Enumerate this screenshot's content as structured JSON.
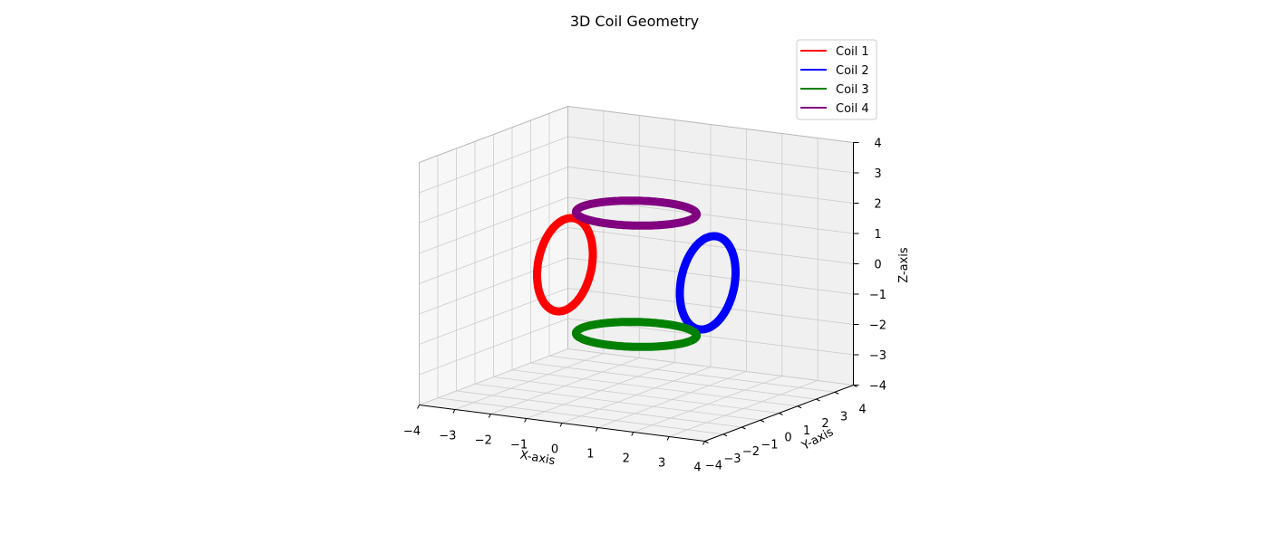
{
  "chart_data": {
    "type": "line3d",
    "title": "3D Coil Geometry",
    "xlabel": "X-axis",
    "ylabel": "Y-axis",
    "zlabel": "Z-axis",
    "xlim": [
      -4,
      4
    ],
    "ylim": [
      -4,
      4
    ],
    "zlim": [
      -4,
      4
    ],
    "xticks": [
      -4,
      -3,
      -2,
      -1,
      0,
      1,
      2,
      3,
      4
    ],
    "yticks": [
      -4,
      -3,
      -2,
      -1,
      0,
      1,
      2,
      3,
      4
    ],
    "zticks": [
      -4,
      -3,
      -2,
      -1,
      0,
      1,
      2,
      3,
      4
    ],
    "tick_labels": {
      "x": [
        "−4",
        "−3",
        "−2",
        "−1",
        "0",
        "1",
        "2",
        "3",
        "4"
      ],
      "y": [
        "−4",
        "−3",
        "−2",
        "−1",
        "0",
        "1",
        "2",
        "3",
        "4"
      ],
      "z": [
        "−4",
        "−3",
        "−2",
        "−1",
        "0",
        "1",
        "2",
        "3",
        "4"
      ]
    },
    "grid": true,
    "legend_position": "top-right",
    "series": [
      {
        "name": "Coil 1",
        "color": "#ff0000",
        "center": [
          -2,
          0,
          0
        ],
        "radius": 1.5,
        "normal": "x"
      },
      {
        "name": "Coil 2",
        "color": "#0000ff",
        "center": [
          2,
          0,
          0
        ],
        "radius": 1.5,
        "normal": "x"
      },
      {
        "name": "Coil 3",
        "color": "#008000",
        "center": [
          0,
          0,
          -2
        ],
        "radius": 1.5,
        "normal": "z"
      },
      {
        "name": "Coil 4",
        "color": "#800080",
        "center": [
          0,
          0,
          2
        ],
        "radius": 1.5,
        "normal": "z"
      }
    ]
  }
}
